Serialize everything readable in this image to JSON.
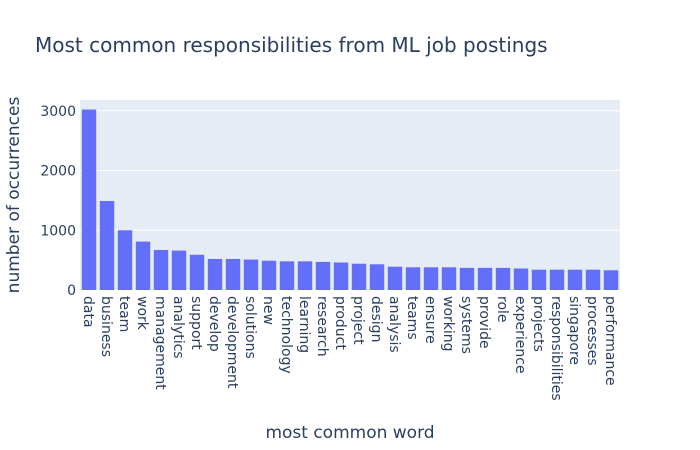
{
  "chart_data": {
    "type": "bar",
    "title": "Most common responsibilities from ML job postings",
    "xlabel": "most common word",
    "ylabel": "number of occurrences",
    "categories": [
      "data",
      "business",
      "team",
      "work",
      "management",
      "analytics",
      "support",
      "develop",
      "development",
      "solutions",
      "new",
      "technology",
      "learning",
      "research",
      "product",
      "project",
      "design",
      "analysis",
      "teams",
      "ensure",
      "working",
      "systems",
      "provide",
      "role",
      "experience",
      "projects",
      "responsibilities",
      "singapore",
      "processes",
      "performance"
    ],
    "values": [
      3020,
      1490,
      1000,
      810,
      670,
      660,
      590,
      520,
      520,
      510,
      490,
      480,
      480,
      470,
      460,
      440,
      430,
      390,
      380,
      380,
      380,
      370,
      370,
      370,
      360,
      340,
      340,
      340,
      340,
      330
    ],
    "ylim": [
      0,
      3180
    ],
    "yticks": [
      0,
      1000,
      2000,
      3000
    ],
    "ytick_labels": [
      "0",
      "1000",
      "2000",
      "3000"
    ],
    "grid": true,
    "bar_color": "#636efa",
    "plot_bg": "#e5ecf6"
  }
}
